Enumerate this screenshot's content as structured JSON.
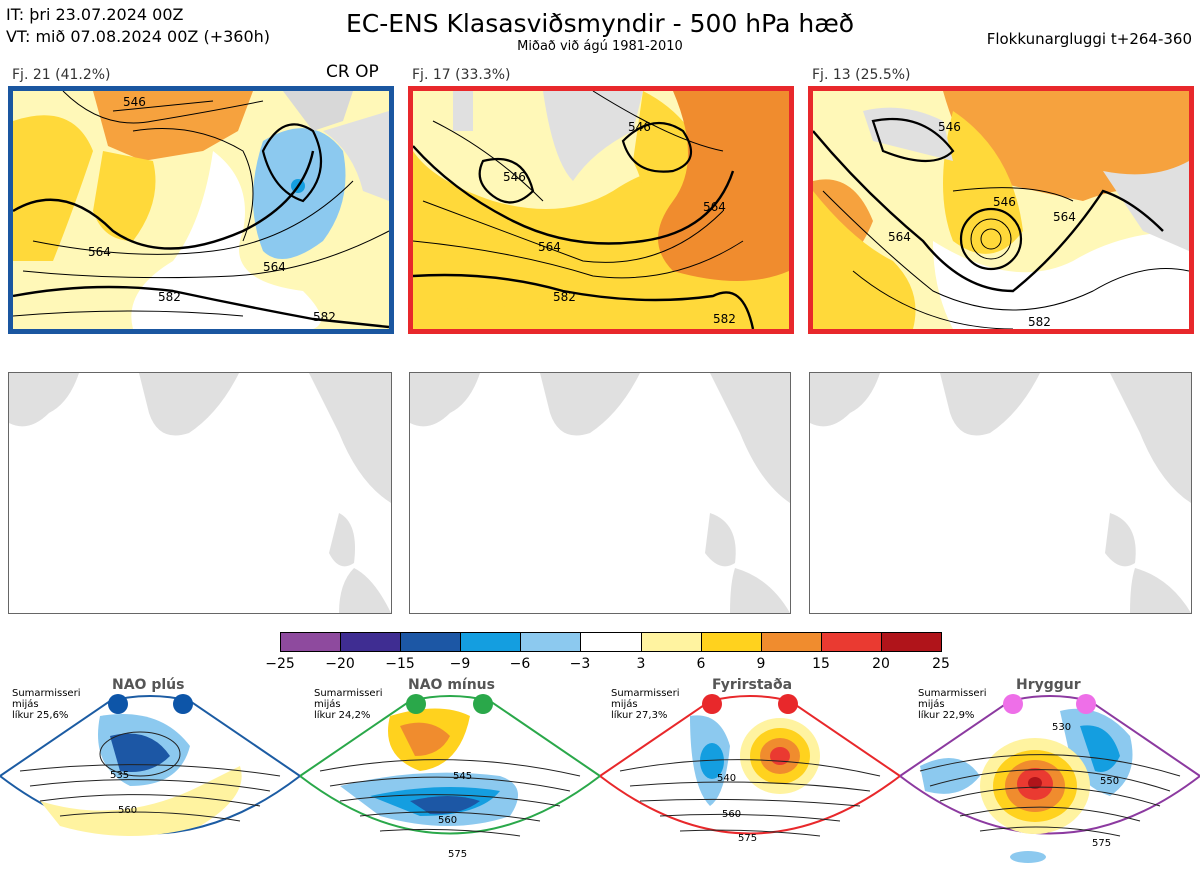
{
  "header": {
    "it_line": "IT: þri 23.07.2024 00Z",
    "vt_line": "VT: mið 07.08.2024 00Z  (+360h)",
    "title": "EC-ENS Klasasviðsmyndir - 500 hPa hæð",
    "subtitle": "Miðað við ágú 1981-2010",
    "window": "Flokkunargluggi t+264-360"
  },
  "panels": [
    {
      "label": "Fj. 21 (41.2%)",
      "extra": "CR OP",
      "border_color": "#1a56a0",
      "contours": [
        "546",
        "564",
        "564",
        "582",
        "582"
      ]
    },
    {
      "label": "Fj. 17 (33.3%)",
      "extra": "",
      "border_color": "#e8282b",
      "contours": [
        "546",
        "546",
        "564",
        "564",
        "582",
        "582"
      ]
    },
    {
      "label": "Fj. 13 (25.5%)",
      "extra": "",
      "border_color": "#e8282b",
      "contours": [
        "546",
        "546",
        "564",
        "564",
        "582"
      ]
    }
  ],
  "colorbar": {
    "ticks": [
      "−25",
      "−20",
      "−15",
      "−9",
      "−6",
      "−3",
      "3",
      "6",
      "9",
      "15",
      "20",
      "25"
    ],
    "colors": [
      "#8e4a9e",
      "#3f2d92",
      "#1c57a5",
      "#149ee0",
      "#8cc9ef",
      "#ffffff",
      "#fff3a0",
      "#ffd21e",
      "#f08c2e",
      "#ea3a31",
      "#b0141a"
    ]
  },
  "regimes": [
    {
      "title": "NAO plús",
      "season": "Sumarmisseri",
      "freq": "mijás",
      "prob": "líkur 25,6%",
      "color": "#1c5ca3",
      "dot_color": "#0d55a8",
      "contours": [
        "535",
        "560"
      ]
    },
    {
      "title": "NAO mínus",
      "season": "Sumarmisseri",
      "freq": "mijás",
      "prob": "líkur 24,2%",
      "color": "#2aa84a",
      "dot_color": "#2aa84a",
      "contours": [
        "545",
        "560",
        "575"
      ]
    },
    {
      "title": "Fyrirstaða",
      "season": "Sumarmisseri",
      "freq": "mijás",
      "prob": "líkur 27,3%",
      "color": "#e8282b",
      "dot_color": "#e8282b",
      "contours": [
        "540",
        "560",
        "575"
      ]
    },
    {
      "title": "Hryggur",
      "season": "Sumarmisseri",
      "freq": "mijás",
      "prob": "líkur 22,9%",
      "color": "#8c3aa0",
      "dot_color": "#ee6fe8",
      "contours": [
        "530",
        "550",
        "575"
      ]
    }
  ]
}
